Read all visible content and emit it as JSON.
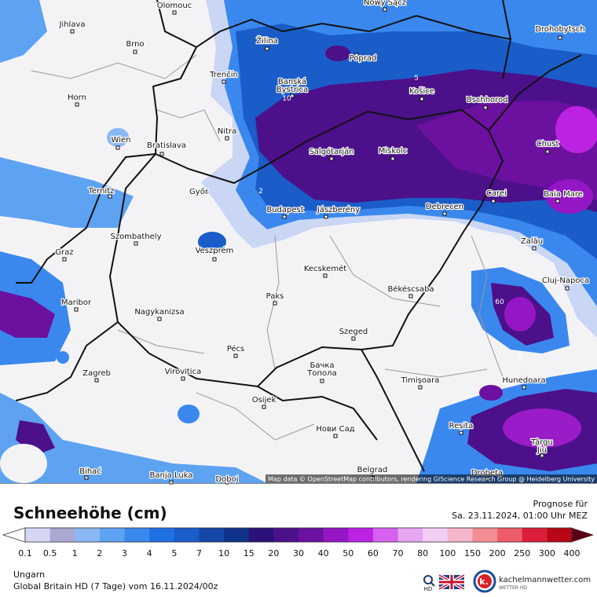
{
  "map": {
    "places": [
      {
        "name": "Olomouc"
      },
      {
        "name": "Nowy Sącz"
      },
      {
        "name": "Jihlava"
      },
      {
        "name": "Brno"
      },
      {
        "name": "Žilina"
      },
      {
        "name": "Poprad"
      },
      {
        "name": "Drohobytsch"
      },
      {
        "name": "Trenčín"
      },
      {
        "lines": [
          "Banská",
          "Bystrica"
        ]
      },
      {
        "name": "Košice"
      },
      {
        "name": "Uschhorod"
      },
      {
        "name": "Horn"
      },
      {
        "name": "Nitra"
      },
      {
        "name": "Wien"
      },
      {
        "name": "Bratislava"
      },
      {
        "name": "Salgótarján"
      },
      {
        "name": "Miskolc"
      },
      {
        "name": "Chust"
      },
      {
        "name": "Ternitz"
      },
      {
        "name": "Győr"
      },
      {
        "name": "Carei"
      },
      {
        "name": "Baia Mare"
      },
      {
        "name": "Budapest"
      },
      {
        "name": "Jászberény"
      },
      {
        "name": "Debrecen"
      },
      {
        "name": "Szombathely"
      },
      {
        "name": "Zalău"
      },
      {
        "name": "Veszprém"
      },
      {
        "name": "Graz"
      },
      {
        "name": "Kecskemét"
      },
      {
        "name": "Cluj-Napoca"
      },
      {
        "name": "Békéscsaba"
      },
      {
        "name": "Maribor"
      },
      {
        "name": "Paks"
      },
      {
        "name": "Nagykanizsa"
      },
      {
        "name": "Pécs"
      },
      {
        "name": "Szeged"
      },
      {
        "name": "Zagreb"
      },
      {
        "name": "Virovitica"
      },
      {
        "lines": [
          "Бачка",
          "Топола"
        ]
      },
      {
        "name": "Timișoara"
      },
      {
        "name": "Hunedoara"
      },
      {
        "name": "Osijek"
      },
      {
        "name": "Нови Сад"
      },
      {
        "name": "Reșita"
      },
      {
        "lines": [
          "Târgu",
          "Jiu"
        ]
      },
      {
        "name": "Bihać"
      },
      {
        "name": "Banja Luka"
      },
      {
        "name": "Doboj"
      },
      {
        "name": "Belgrad"
      },
      {
        "name": "Drobeta"
      }
    ],
    "contour_labels": [
      "60",
      "2",
      "5",
      "10",
      "2"
    ],
    "attribution": "Map data © OpenStreetMap contributors, rendering GIScience Research Group @ Heidelberg University"
  },
  "legend": {
    "title": "Schneehöhe (cm)",
    "values": [
      0.1,
      0.5,
      1,
      2,
      3,
      4,
      5,
      7,
      10,
      15,
      20,
      30,
      40,
      50,
      60,
      70,
      80,
      100,
      150,
      200,
      250,
      300,
      400
    ],
    "colors": [
      "#d6d6f6",
      "#a9a9d4",
      "#8ab8f4",
      "#5ea2f2",
      "#3a88ee",
      "#1f70e2",
      "#1a5cc8",
      "#1548a8",
      "#10338a",
      "#2a1278",
      "#4c108a",
      "#6c10a0",
      "#9416c4",
      "#bb22e2",
      "#d660f0",
      "#e6a6f2",
      "#f2cdf4",
      "#f6b6cc",
      "#f58d94",
      "#ee5c6a",
      "#dc1e3a",
      "#b80818"
    ],
    "low_color": "#ffffff",
    "high_color": "#5a0014"
  },
  "forecast": {
    "label": "Prognose für",
    "time": "Sa. 23.11.2024, 01:00 Uhr MEZ"
  },
  "footer": {
    "region": "Ungarn",
    "model": "Global Britain HD (7 Tage) vom  16.11.2024/00z",
    "hd": "HD",
    "site": "kachelmannwetter.com",
    "brand": "WETTER HD"
  }
}
